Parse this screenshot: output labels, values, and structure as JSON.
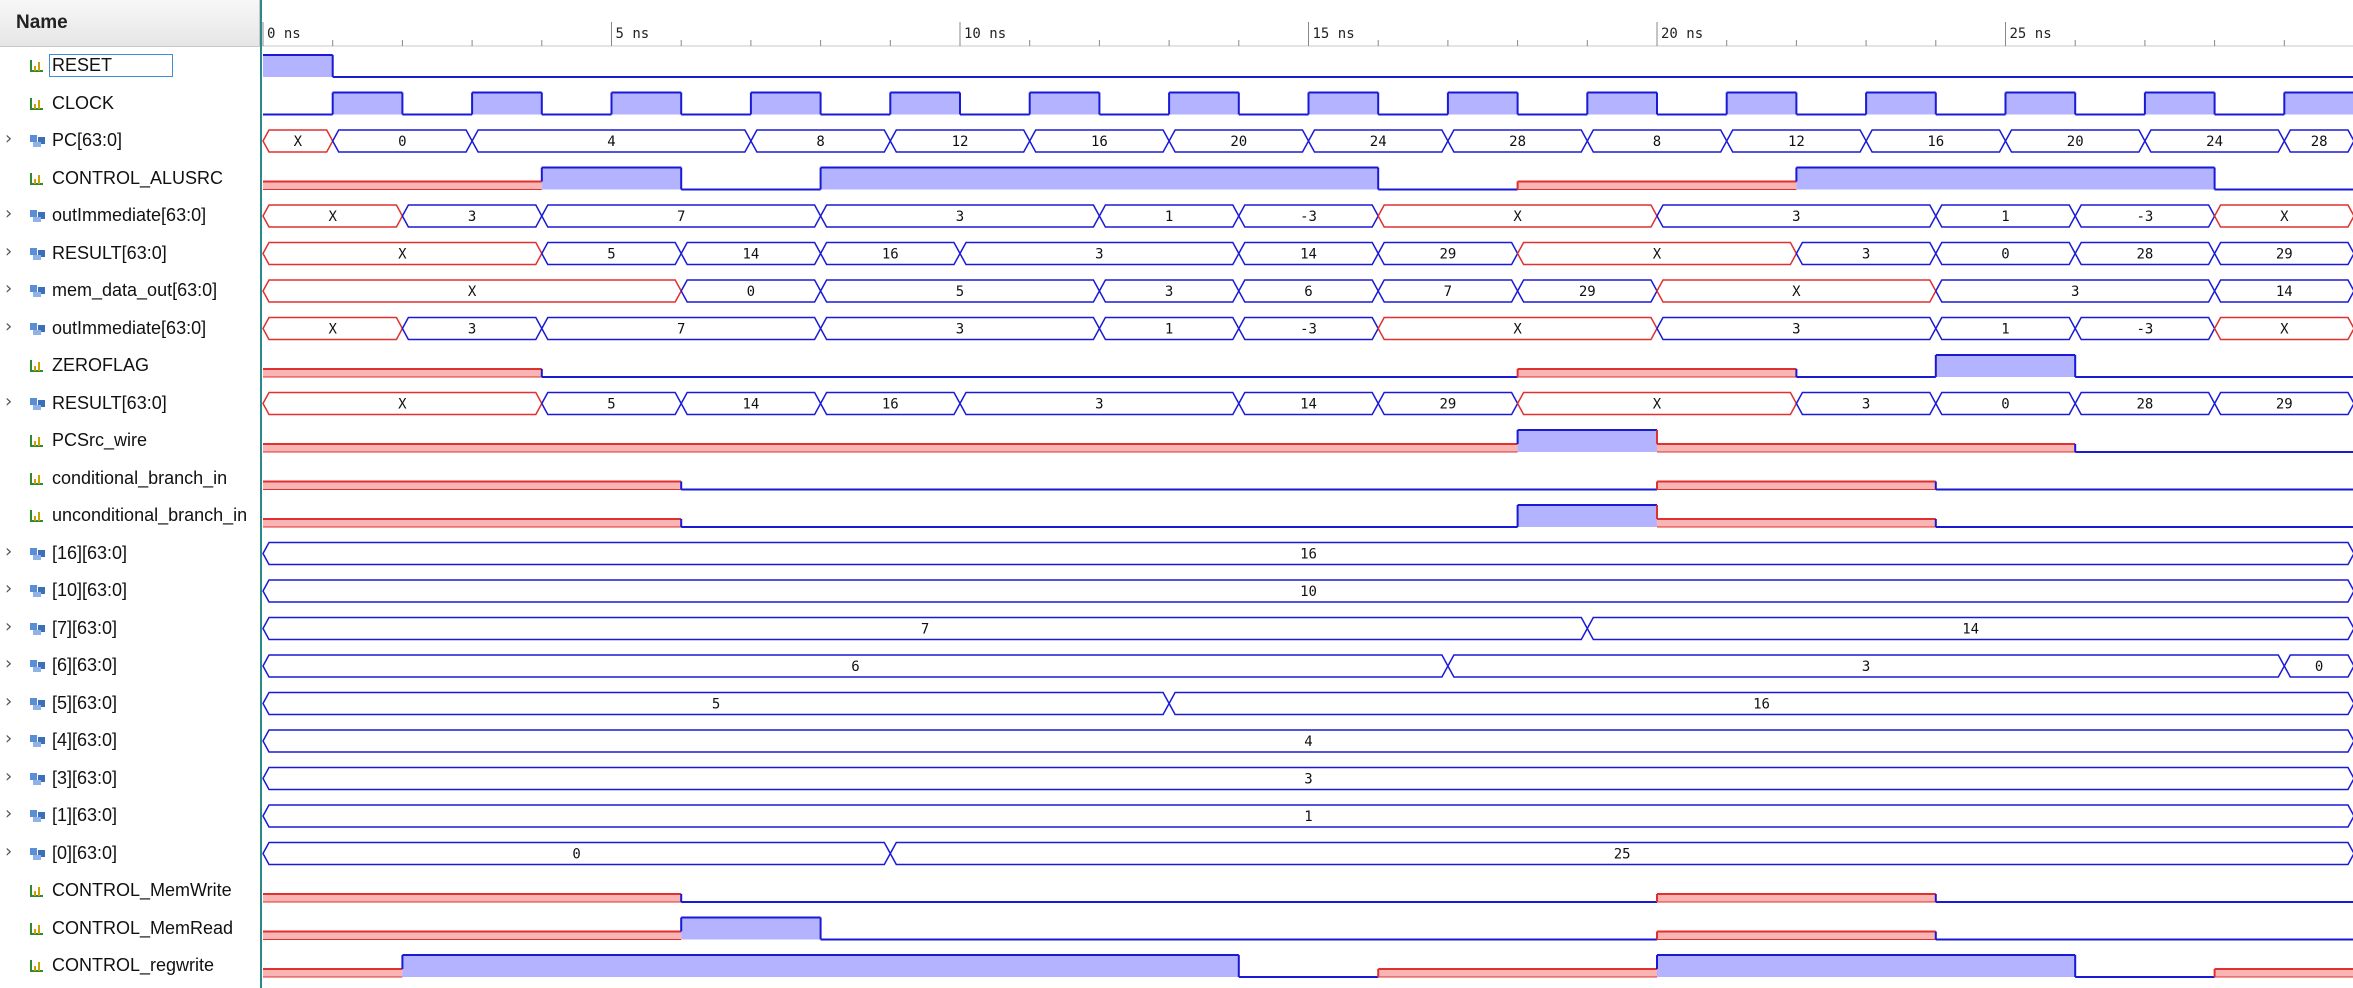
{
  "header": {
    "name_column": "Name"
  },
  "time_axis": {
    "start_ns": 0,
    "end_ns": 30,
    "major_labels": [
      "0 ns",
      "5 ns",
      "10 ns",
      "15 ns",
      "20 ns",
      "25 ns"
    ],
    "major_values_ns": [
      0,
      5,
      10,
      15,
      20,
      25
    ],
    "clock_period_ns": 2
  },
  "colors": {
    "high_fill": "#b3b3ff",
    "high_line": "#1a1ad6",
    "low_line": "#1a1ad6",
    "x_line": "#e03030",
    "x_fill": "#f9b4b4",
    "bus_line": "#1a1ad6",
    "tick_line": "#888888"
  },
  "signals": [
    {
      "name": "RESET",
      "kind": "bit",
      "selected": true,
      "segments": [
        {
          "t0": 0,
          "t1": 1,
          "v": "1"
        },
        {
          "t0": 1,
          "t1": 30,
          "v": "0"
        }
      ]
    },
    {
      "name": "CLOCK",
      "kind": "bit",
      "segments": [
        {
          "t0": 0,
          "t1": 1,
          "v": "0"
        },
        {
          "t0": 1,
          "t1": 2,
          "v": "1"
        },
        {
          "t0": 2,
          "t1": 3,
          "v": "0"
        },
        {
          "t0": 3,
          "t1": 4,
          "v": "1"
        },
        {
          "t0": 4,
          "t1": 5,
          "v": "0"
        },
        {
          "t0": 5,
          "t1": 6,
          "v": "1"
        },
        {
          "t0": 6,
          "t1": 7,
          "v": "0"
        },
        {
          "t0": 7,
          "t1": 8,
          "v": "1"
        },
        {
          "t0": 8,
          "t1": 9,
          "v": "0"
        },
        {
          "t0": 9,
          "t1": 10,
          "v": "1"
        },
        {
          "t0": 10,
          "t1": 11,
          "v": "0"
        },
        {
          "t0": 11,
          "t1": 12,
          "v": "1"
        },
        {
          "t0": 12,
          "t1": 13,
          "v": "0"
        },
        {
          "t0": 13,
          "t1": 14,
          "v": "1"
        },
        {
          "t0": 14,
          "t1": 15,
          "v": "0"
        },
        {
          "t0": 15,
          "t1": 16,
          "v": "1"
        },
        {
          "t0": 16,
          "t1": 17,
          "v": "0"
        },
        {
          "t0": 17,
          "t1": 18,
          "v": "1"
        },
        {
          "t0": 18,
          "t1": 19,
          "v": "0"
        },
        {
          "t0": 19,
          "t1": 20,
          "v": "1"
        },
        {
          "t0": 20,
          "t1": 21,
          "v": "0"
        },
        {
          "t0": 21,
          "t1": 22,
          "v": "1"
        },
        {
          "t0": 22,
          "t1": 23,
          "v": "0"
        },
        {
          "t0": 23,
          "t1": 24,
          "v": "1"
        },
        {
          "t0": 24,
          "t1": 25,
          "v": "0"
        },
        {
          "t0": 25,
          "t1": 26,
          "v": "1"
        },
        {
          "t0": 26,
          "t1": 27,
          "v": "0"
        },
        {
          "t0": 27,
          "t1": 28,
          "v": "1"
        },
        {
          "t0": 28,
          "t1": 29,
          "v": "0"
        },
        {
          "t0": 29,
          "t1": 30,
          "v": "1"
        }
      ]
    },
    {
      "name": "PC[63:0]",
      "kind": "bus",
      "segments": [
        {
          "t0": 0,
          "t1": 1,
          "v": "X"
        },
        {
          "t0": 1,
          "t1": 3,
          "v": "0"
        },
        {
          "t0": 3,
          "t1": 7,
          "v": "4"
        },
        {
          "t0": 7,
          "t1": 9,
          "v": "8"
        },
        {
          "t0": 9,
          "t1": 11,
          "v": "12"
        },
        {
          "t0": 11,
          "t1": 13,
          "v": "16"
        },
        {
          "t0": 13,
          "t1": 15,
          "v": "20"
        },
        {
          "t0": 15,
          "t1": 17,
          "v": "24"
        },
        {
          "t0": 17,
          "t1": 19,
          "v": "28"
        },
        {
          "t0": 19,
          "t1": 21,
          "v": "8"
        },
        {
          "t0": 21,
          "t1": 23,
          "v": "12"
        },
        {
          "t0": 23,
          "t1": 25,
          "v": "16"
        },
        {
          "t0": 25,
          "t1": 27,
          "v": "20"
        },
        {
          "t0": 27,
          "t1": 29,
          "v": "24"
        },
        {
          "t0": 29,
          "t1": 30,
          "v": "28"
        }
      ]
    },
    {
      "name": "CONTROL_ALUSRC",
      "kind": "bit",
      "segments": [
        {
          "t0": 0,
          "t1": 4,
          "v": "X"
        },
        {
          "t0": 4,
          "t1": 6,
          "v": "1"
        },
        {
          "t0": 6,
          "t1": 8,
          "v": "0"
        },
        {
          "t0": 8,
          "t1": 16,
          "v": "1"
        },
        {
          "t0": 16,
          "t1": 18,
          "v": "0"
        },
        {
          "t0": 18,
          "t1": 22,
          "v": "X"
        },
        {
          "t0": 22,
          "t1": 28,
          "v": "1"
        },
        {
          "t0": 28,
          "t1": 30,
          "v": "0"
        }
      ]
    },
    {
      "name": "outImmediate[63:0]",
      "kind": "bus",
      "segments": [
        {
          "t0": 0,
          "t1": 2,
          "v": "X"
        },
        {
          "t0": 2,
          "t1": 4,
          "v": "3"
        },
        {
          "t0": 4,
          "t1": 8,
          "v": "7"
        },
        {
          "t0": 8,
          "t1": 12,
          "v": "3"
        },
        {
          "t0": 12,
          "t1": 14,
          "v": "1"
        },
        {
          "t0": 14,
          "t1": 16,
          "v": "-3"
        },
        {
          "t0": 16,
          "t1": 20,
          "v": "X"
        },
        {
          "t0": 20,
          "t1": 24,
          "v": "3"
        },
        {
          "t0": 24,
          "t1": 26,
          "v": "1"
        },
        {
          "t0": 26,
          "t1": 28,
          "v": "-3"
        },
        {
          "t0": 28,
          "t1": 30,
          "v": "X"
        }
      ]
    },
    {
      "name": "RESULT[63:0]",
      "kind": "bus",
      "segments": [
        {
          "t0": 0,
          "t1": 4,
          "v": "X"
        },
        {
          "t0": 4,
          "t1": 6,
          "v": "5"
        },
        {
          "t0": 6,
          "t1": 8,
          "v": "14"
        },
        {
          "t0": 8,
          "t1": 10,
          "v": "16"
        },
        {
          "t0": 10,
          "t1": 14,
          "v": "3"
        },
        {
          "t0": 14,
          "t1": 16,
          "v": "14"
        },
        {
          "t0": 16,
          "t1": 18,
          "v": "29"
        },
        {
          "t0": 18,
          "t1": 22,
          "v": "X"
        },
        {
          "t0": 22,
          "t1": 24,
          "v": "3"
        },
        {
          "t0": 24,
          "t1": 26,
          "v": "0"
        },
        {
          "t0": 26,
          "t1": 28,
          "v": "28"
        },
        {
          "t0": 28,
          "t1": 30,
          "v": "29"
        }
      ]
    },
    {
      "name": "mem_data_out[63:0]",
      "kind": "bus",
      "segments": [
        {
          "t0": 0,
          "t1": 6,
          "v": "X"
        },
        {
          "t0": 6,
          "t1": 8,
          "v": "0"
        },
        {
          "t0": 8,
          "t1": 12,
          "v": "5"
        },
        {
          "t0": 12,
          "t1": 14,
          "v": "3"
        },
        {
          "t0": 14,
          "t1": 16,
          "v": "6"
        },
        {
          "t0": 16,
          "t1": 18,
          "v": "7"
        },
        {
          "t0": 18,
          "t1": 20,
          "v": "29"
        },
        {
          "t0": 20,
          "t1": 24,
          "v": "X"
        },
        {
          "t0": 24,
          "t1": 28,
          "v": "3"
        },
        {
          "t0": 28,
          "t1": 30,
          "v": "14"
        }
      ]
    },
    {
      "name": "outImmediate[63:0]",
      "kind": "bus",
      "segments": [
        {
          "t0": 0,
          "t1": 2,
          "v": "X"
        },
        {
          "t0": 2,
          "t1": 4,
          "v": "3"
        },
        {
          "t0": 4,
          "t1": 8,
          "v": "7"
        },
        {
          "t0": 8,
          "t1": 12,
          "v": "3"
        },
        {
          "t0": 12,
          "t1": 14,
          "v": "1"
        },
        {
          "t0": 14,
          "t1": 16,
          "v": "-3"
        },
        {
          "t0": 16,
          "t1": 20,
          "v": "X"
        },
        {
          "t0": 20,
          "t1": 24,
          "v": "3"
        },
        {
          "t0": 24,
          "t1": 26,
          "v": "1"
        },
        {
          "t0": 26,
          "t1": 28,
          "v": "-3"
        },
        {
          "t0": 28,
          "t1": 30,
          "v": "X"
        }
      ]
    },
    {
      "name": "ZEROFLAG",
      "kind": "bit",
      "segments": [
        {
          "t0": 0,
          "t1": 4,
          "v": "X"
        },
        {
          "t0": 4,
          "t1": 18,
          "v": "0"
        },
        {
          "t0": 18,
          "t1": 22,
          "v": "X"
        },
        {
          "t0": 22,
          "t1": 24,
          "v": "0"
        },
        {
          "t0": 24,
          "t1": 26,
          "v": "1"
        },
        {
          "t0": 26,
          "t1": 30,
          "v": "0"
        }
      ]
    },
    {
      "name": "RESULT[63:0]",
      "kind": "bus",
      "segments": [
        {
          "t0": 0,
          "t1": 4,
          "v": "X"
        },
        {
          "t0": 4,
          "t1": 6,
          "v": "5"
        },
        {
          "t0": 6,
          "t1": 8,
          "v": "14"
        },
        {
          "t0": 8,
          "t1": 10,
          "v": "16"
        },
        {
          "t0": 10,
          "t1": 14,
          "v": "3"
        },
        {
          "t0": 14,
          "t1": 16,
          "v": "14"
        },
        {
          "t0": 16,
          "t1": 18,
          "v": "29"
        },
        {
          "t0": 18,
          "t1": 22,
          "v": "X"
        },
        {
          "t0": 22,
          "t1": 24,
          "v": "3"
        },
        {
          "t0": 24,
          "t1": 26,
          "v": "0"
        },
        {
          "t0": 26,
          "t1": 28,
          "v": "28"
        },
        {
          "t0": 28,
          "t1": 30,
          "v": "29"
        }
      ]
    },
    {
      "name": "PCSrc_wire",
      "kind": "bit",
      "segments": [
        {
          "t0": 0,
          "t1": 18,
          "v": "X"
        },
        {
          "t0": 18,
          "t1": 20,
          "v": "1"
        },
        {
          "t0": 20,
          "t1": 26,
          "v": "X"
        },
        {
          "t0": 26,
          "t1": 30,
          "v": "0"
        }
      ]
    },
    {
      "name": "conditional_branch_in",
      "kind": "bit",
      "segments": [
        {
          "t0": 0,
          "t1": 6,
          "v": "X"
        },
        {
          "t0": 6,
          "t1": 20,
          "v": "0"
        },
        {
          "t0": 20,
          "t1": 24,
          "v": "X"
        },
        {
          "t0": 24,
          "t1": 30,
          "v": "0"
        }
      ]
    },
    {
      "name": "unconditional_branch_in",
      "kind": "bit",
      "segments": [
        {
          "t0": 0,
          "t1": 6,
          "v": "X"
        },
        {
          "t0": 6,
          "t1": 18,
          "v": "0"
        },
        {
          "t0": 18,
          "t1": 20,
          "v": "1"
        },
        {
          "t0": 20,
          "t1": 24,
          "v": "X"
        },
        {
          "t0": 24,
          "t1": 30,
          "v": "0"
        }
      ]
    },
    {
      "name": "[16][63:0]",
      "kind": "bus",
      "segments": [
        {
          "t0": 0,
          "t1": 30,
          "v": "16"
        }
      ]
    },
    {
      "name": "[10][63:0]",
      "kind": "bus",
      "segments": [
        {
          "t0": 0,
          "t1": 30,
          "v": "10"
        }
      ]
    },
    {
      "name": "[7][63:0]",
      "kind": "bus",
      "segments": [
        {
          "t0": 0,
          "t1": 19,
          "v": "7"
        },
        {
          "t0": 19,
          "t1": 30,
          "v": "14"
        }
      ]
    },
    {
      "name": "[6][63:0]",
      "kind": "bus",
      "segments": [
        {
          "t0": 0,
          "t1": 17,
          "v": "6"
        },
        {
          "t0": 17,
          "t1": 29,
          "v": "3"
        },
        {
          "t0": 29,
          "t1": 30,
          "v": "0"
        }
      ]
    },
    {
      "name": "[5][63:0]",
      "kind": "bus",
      "segments": [
        {
          "t0": 0,
          "t1": 13,
          "v": "5"
        },
        {
          "t0": 13,
          "t1": 30,
          "v": "16"
        }
      ]
    },
    {
      "name": "[4][63:0]",
      "kind": "bus",
      "segments": [
        {
          "t0": 0,
          "t1": 30,
          "v": "4"
        }
      ]
    },
    {
      "name": "[3][63:0]",
      "kind": "bus",
      "segments": [
        {
          "t0": 0,
          "t1": 30,
          "v": "3"
        }
      ]
    },
    {
      "name": "[1][63:0]",
      "kind": "bus",
      "segments": [
        {
          "t0": 0,
          "t1": 30,
          "v": "1"
        }
      ]
    },
    {
      "name": "[0][63:0]",
      "kind": "bus",
      "segments": [
        {
          "t0": 0,
          "t1": 9,
          "v": "0"
        },
        {
          "t0": 9,
          "t1": 30,
          "v": "25"
        }
      ]
    },
    {
      "name": "CONTROL_MemWrite",
      "kind": "bit",
      "segments": [
        {
          "t0": 0,
          "t1": 6,
          "v": "X"
        },
        {
          "t0": 6,
          "t1": 20,
          "v": "0"
        },
        {
          "t0": 20,
          "t1": 24,
          "v": "X"
        },
        {
          "t0": 24,
          "t1": 30,
          "v": "0"
        }
      ]
    },
    {
      "name": "CONTROL_MemRead",
      "kind": "bit",
      "segments": [
        {
          "t0": 0,
          "t1": 6,
          "v": "X"
        },
        {
          "t0": 6,
          "t1": 8,
          "v": "1"
        },
        {
          "t0": 8,
          "t1": 20,
          "v": "0"
        },
        {
          "t0": 20,
          "t1": 24,
          "v": "X"
        },
        {
          "t0": 24,
          "t1": 30,
          "v": "0"
        }
      ]
    },
    {
      "name": "CONTROL_regwrite",
      "kind": "bit",
      "segments": [
        {
          "t0": 0,
          "t1": 2,
          "v": "X"
        },
        {
          "t0": 2,
          "t1": 14,
          "v": "1"
        },
        {
          "t0": 14,
          "t1": 16,
          "v": "0"
        },
        {
          "t0": 16,
          "t1": 20,
          "v": "X"
        },
        {
          "t0": 20,
          "t1": 26,
          "v": "1"
        },
        {
          "t0": 26,
          "t1": 28,
          "v": "0"
        },
        {
          "t0": 28,
          "t1": 30,
          "v": "X"
        }
      ]
    }
  ]
}
